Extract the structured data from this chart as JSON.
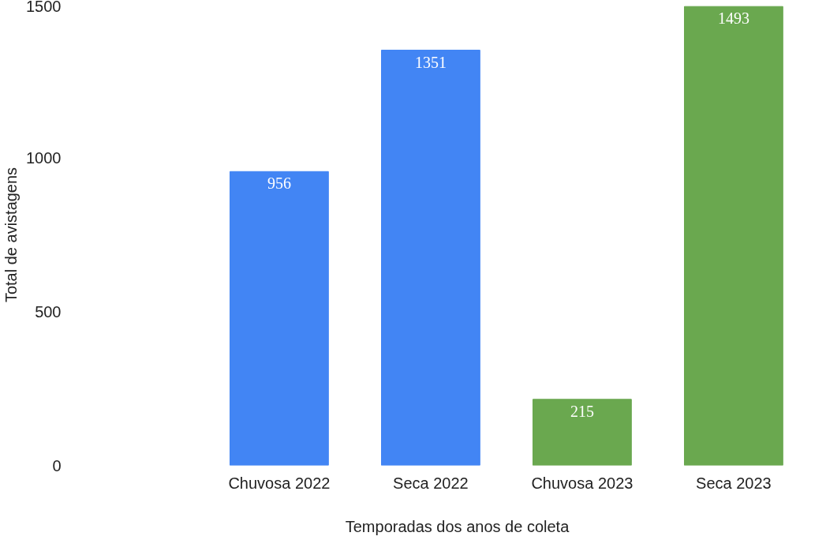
{
  "chart_data": {
    "type": "bar",
    "xlabel": "Temporadas dos anos de coleta",
    "ylabel": "Total de avistagens",
    "categories": [
      "Chuvosa 2022",
      "Seca 2022",
      "Chuvosa 2023",
      "Seca 2023"
    ],
    "values": [
      956,
      1351,
      215,
      1493
    ],
    "colors": [
      "#4285f4",
      "#4285f4",
      "#6aa84f",
      "#6aa84f"
    ],
    "ylim": [
      0,
      1500
    ],
    "yticks": [
      0,
      500,
      1000,
      1500
    ],
    "grid": false,
    "data_labels": true
  }
}
